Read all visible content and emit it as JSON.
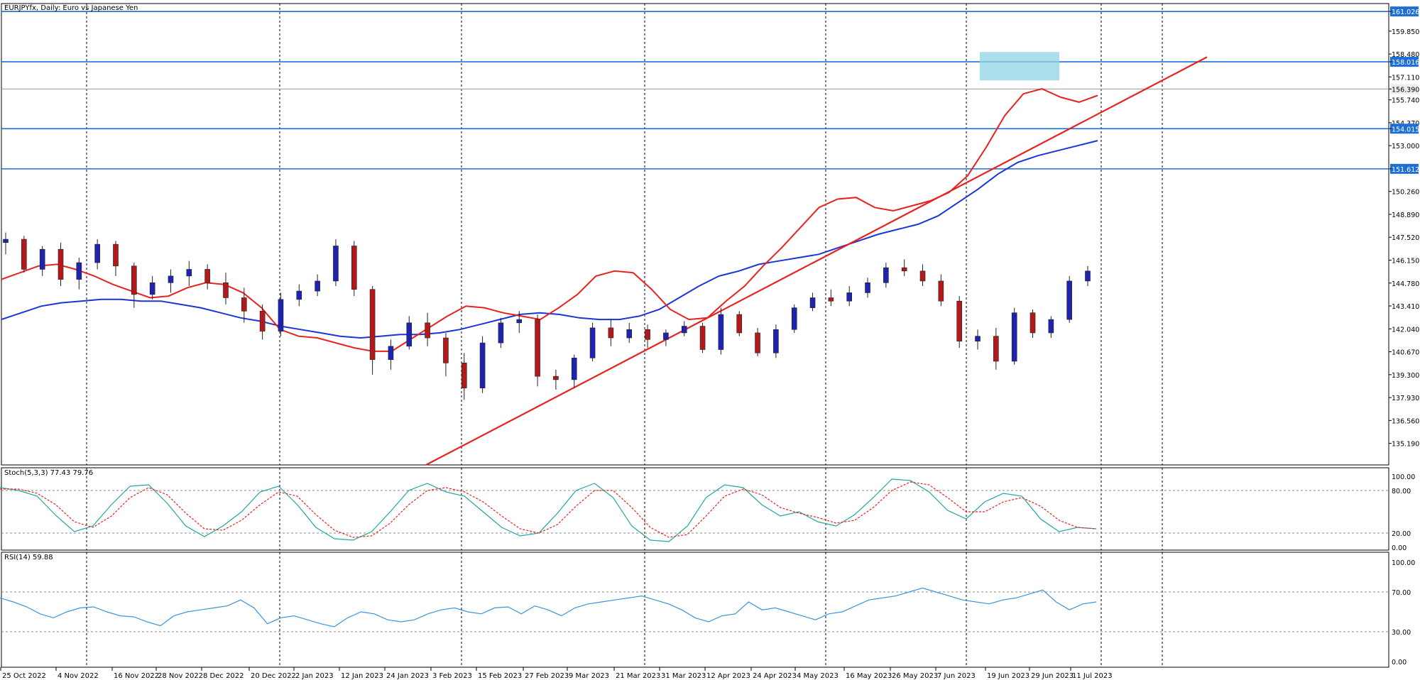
{
  "chart_data": [
    {
      "type": "candlestick",
      "title": "EURJPYfx, Daily:  Euro vs Japanese Yen",
      "ylim": [
        133.9,
        161.5
      ],
      "y_ticks": [
        "161.026",
        "159.850",
        "158.480",
        "158.016",
        "157.110",
        "156.390",
        "155.740",
        "154.370",
        "154.015",
        "153.000",
        "151.612",
        "150.260",
        "148.890",
        "147.520",
        "146.150",
        "144.780",
        "143.410",
        "142.040",
        "140.670",
        "139.300",
        "137.930",
        "136.560",
        "135.190"
      ],
      "price_tag": "156.390",
      "x_labels": [
        "25 Oct 2022",
        "4 Nov 2022",
        "16 Nov 2022",
        "28 Nov 2022",
        "8 Dec 2022",
        "20 Dec 2022",
        "2 Jan 2023",
        "12 Jan 2023",
        "24 Jan 2023",
        "3 Feb 2023",
        "15 Feb 2023",
        "27 Feb 2023",
        "9 Mar 2023",
        "21 Mar 2023",
        "31 Mar 2023",
        "12 Apr 2023",
        "24 Apr 2023",
        "4 May 2023",
        "16 May 2023",
        "26 May 2023",
        "7 Jun 2023",
        "19 Jun 2023",
        "29 Jun 2023",
        "11 Jul 2023"
      ],
      "horizontal_levels": [
        161.026,
        158.016,
        154.015,
        151.612
      ],
      "highlight_zone": {
        "x_from": "21 Jun 2023",
        "x_to": "7 Jul 2023",
        "y_from": 156.9,
        "y_to": 158.6
      },
      "trendline": {
        "from": {
          "x": "31 Jan 2023",
          "y": 133.9
        },
        "to": {
          "x": "12 Aug 2023",
          "y": 158.3
        }
      },
      "colors": {
        "bull": "#1f24b0",
        "bear": "#b3191b",
        "ma_fast": "#e8221d",
        "ma_slow": "#1b35d6",
        "levels": "#1d6fd6",
        "zone": "#8fd3e3",
        "trend": "#e8221d",
        "current_tag": "#6b6b6b"
      },
      "ma_fast": [
        145.0,
        145.4,
        145.8,
        145.9,
        145.6,
        145.2,
        144.7,
        144.3,
        143.9,
        144.0,
        144.5,
        144.8,
        144.7,
        144.2,
        143.3,
        142.0,
        141.6,
        141.5,
        141.2,
        140.9,
        140.7,
        140.7,
        141.4,
        142.1,
        142.8,
        143.4,
        143.3,
        143.0,
        142.8,
        142.6,
        143.3,
        144.1,
        145.2,
        145.5,
        145.4,
        144.4,
        143.2,
        142.6,
        142.7,
        143.7,
        144.6,
        145.8,
        146.9,
        148.1,
        149.3,
        149.8,
        149.9,
        149.3,
        149.1,
        149.4,
        149.7,
        150.2,
        151.2,
        152.9,
        154.8,
        156.1,
        156.4,
        155.9,
        155.6,
        156.0
      ],
      "ma_slow": [
        142.6,
        143.0,
        143.4,
        143.6,
        143.7,
        143.8,
        143.8,
        143.7,
        143.7,
        143.5,
        143.3,
        143.0,
        142.7,
        142.5,
        142.2,
        142.0,
        141.8,
        141.6,
        141.5,
        141.6,
        141.7,
        141.7,
        141.8,
        142.0,
        142.3,
        142.6,
        142.9,
        143.0,
        142.9,
        142.7,
        142.6,
        142.6,
        142.8,
        143.2,
        143.9,
        144.6,
        145.2,
        145.5,
        145.9,
        146.1,
        146.3,
        146.5,
        146.9,
        147.3,
        147.7,
        148.0,
        148.3,
        148.8,
        149.6,
        150.4,
        151.3,
        152.0,
        152.4,
        152.7,
        153.0,
        153.3
      ],
      "candles": [
        [
          147.2,
          147.8,
          146.5,
          147.4
        ],
        [
          147.4,
          147.6,
          145.4,
          145.6
        ],
        [
          145.6,
          147.0,
          145.2,
          146.8
        ],
        [
          146.8,
          147.2,
          144.6,
          145.0
        ],
        [
          145.0,
          146.3,
          144.4,
          146.0
        ],
        [
          146.0,
          147.4,
          145.6,
          147.1
        ],
        [
          147.1,
          147.3,
          145.2,
          145.8
        ],
        [
          145.8,
          146.0,
          143.3,
          144.1
        ],
        [
          144.1,
          145.2,
          143.8,
          144.8
        ],
        [
          144.8,
          145.6,
          144.2,
          145.2
        ],
        [
          145.2,
          146.1,
          144.6,
          145.6
        ],
        [
          145.6,
          145.9,
          144.4,
          144.8
        ],
        [
          144.8,
          145.4,
          143.5,
          143.9
        ],
        [
          143.9,
          144.5,
          142.4,
          143.1
        ],
        [
          143.1,
          143.5,
          141.4,
          141.9
        ],
        [
          141.9,
          144.2,
          141.6,
          143.8
        ],
        [
          143.8,
          144.7,
          143.4,
          144.3
        ],
        [
          144.3,
          145.3,
          144.0,
          144.9
        ],
        [
          144.9,
          147.4,
          144.6,
          147.0
        ],
        [
          147.0,
          147.3,
          144.0,
          144.4
        ],
        [
          144.4,
          144.6,
          139.3,
          140.2
        ],
        [
          140.2,
          141.4,
          139.6,
          141.0
        ],
        [
          141.0,
          142.8,
          140.8,
          142.4
        ],
        [
          142.4,
          143.0,
          141.0,
          141.5
        ],
        [
          141.5,
          141.8,
          139.2,
          140.0
        ],
        [
          140.0,
          140.6,
          137.8,
          138.5
        ],
        [
          138.5,
          141.6,
          138.2,
          141.2
        ],
        [
          141.2,
          142.7,
          140.9,
          142.4
        ],
        [
          142.4,
          143.1,
          141.8,
          142.6
        ],
        [
          142.6,
          142.9,
          138.6,
          139.2
        ],
        [
          139.2,
          139.6,
          138.4,
          139.0
        ],
        [
          139.0,
          140.5,
          138.5,
          140.3
        ],
        [
          140.3,
          142.4,
          140.1,
          142.1
        ],
        [
          142.1,
          142.6,
          141.0,
          141.5
        ],
        [
          141.5,
          142.4,
          141.2,
          142.0
        ],
        [
          142.0,
          142.3,
          140.9,
          141.4
        ],
        [
          141.4,
          142.0,
          141.0,
          141.8
        ],
        [
          141.8,
          142.5,
          141.6,
          142.2
        ],
        [
          142.2,
          142.4,
          140.6,
          140.8
        ],
        [
          140.8,
          143.3,
          140.5,
          142.9
        ],
        [
          142.9,
          143.1,
          141.6,
          141.8
        ],
        [
          141.8,
          142.1,
          140.4,
          140.6
        ],
        [
          140.6,
          142.3,
          140.3,
          142.0
        ],
        [
          142.0,
          143.5,
          141.8,
          143.3
        ],
        [
          143.3,
          144.2,
          143.1,
          143.9
        ],
        [
          143.9,
          144.4,
          143.4,
          143.7
        ],
        [
          143.7,
          144.6,
          143.4,
          144.2
        ],
        [
          144.2,
          145.1,
          143.9,
          144.8
        ],
        [
          144.8,
          146.0,
          144.5,
          145.7
        ],
        [
          145.7,
          146.2,
          145.2,
          145.5
        ],
        [
          145.5,
          145.9,
          144.6,
          144.9
        ],
        [
          144.9,
          145.3,
          143.4,
          143.7
        ],
        [
          143.7,
          144.0,
          140.9,
          141.3
        ],
        [
          141.3,
          142.0,
          140.8,
          141.6
        ],
        [
          141.6,
          142.1,
          139.6,
          140.1
        ],
        [
          140.1,
          143.3,
          139.9,
          143.0
        ],
        [
          143.0,
          143.2,
          141.5,
          141.8
        ],
        [
          141.8,
          142.8,
          141.5,
          142.6
        ],
        [
          142.6,
          145.2,
          142.4,
          144.9
        ],
        [
          144.9,
          145.8,
          144.6,
          145.5
        ]
      ]
    },
    {
      "type": "line",
      "title": "Stoch(5,3,3) 77.43 79.76",
      "ylim": [
        0,
        100
      ],
      "y_ticks": [
        "100.00",
        "80.00",
        "20.00",
        "0.00"
      ],
      "levels": [
        80,
        20
      ],
      "series": [
        {
          "color": "#1fa7a3",
          "values": [
            84,
            80,
            72,
            45,
            22,
            30,
            60,
            86,
            88,
            62,
            30,
            15,
            30,
            50,
            78,
            86,
            60,
            28,
            12,
            10,
            22,
            50,
            80,
            90,
            78,
            72,
            50,
            28,
            16,
            20,
            48,
            80,
            90,
            70,
            30,
            10,
            8,
            30,
            70,
            88,
            84,
            60,
            44,
            50,
            36,
            30,
            46,
            70,
            96,
            94,
            78,
            52,
            40,
            64,
            76,
            72,
            40,
            22,
            28,
            26
          ]
        },
        {
          "name": "",
          "color": "#e8221d",
          "values": [
            82,
            82,
            76,
            60,
            36,
            28,
            44,
            70,
            84,
            74,
            48,
            26,
            24,
            38,
            60,
            78,
            72,
            46,
            24,
            14,
            16,
            34,
            60,
            80,
            84,
            78,
            64,
            44,
            26,
            20,
            32,
            58,
            80,
            80,
            56,
            28,
            14,
            18,
            44,
            72,
            82,
            74,
            56,
            48,
            42,
            34,
            38,
            56,
            80,
            92,
            88,
            70,
            50,
            50,
            64,
            70,
            58,
            38,
            28,
            26
          ]
        }
      ]
    },
    {
      "type": "line",
      "title": "RSI(14) 59.88",
      "ylim": [
        0,
        100
      ],
      "y_ticks": [
        "100.00",
        "70.00",
        "30.00",
        "0.00"
      ],
      "levels": [
        70,
        30
      ],
      "series": [
        {
          "color": "#3d94d9",
          "values": [
            64,
            60,
            55,
            48,
            44,
            50,
            54,
            55,
            50,
            46,
            45,
            40,
            36,
            46,
            50,
            52,
            54,
            56,
            62,
            54,
            38,
            44,
            46,
            42,
            38,
            35,
            44,
            50,
            48,
            42,
            40,
            42,
            48,
            52,
            54,
            50,
            48,
            54,
            55,
            48,
            56,
            52,
            46,
            54,
            58,
            60,
            62,
            64,
            66,
            62,
            58,
            52,
            44,
            40,
            46,
            48,
            60,
            52,
            54,
            50,
            46,
            42,
            48,
            50,
            56,
            62,
            64,
            66,
            70,
            74,
            70,
            66,
            62,
            60,
            58,
            62,
            64,
            68,
            72,
            60,
            52,
            58,
            60
          ]
        }
      ]
    }
  ]
}
